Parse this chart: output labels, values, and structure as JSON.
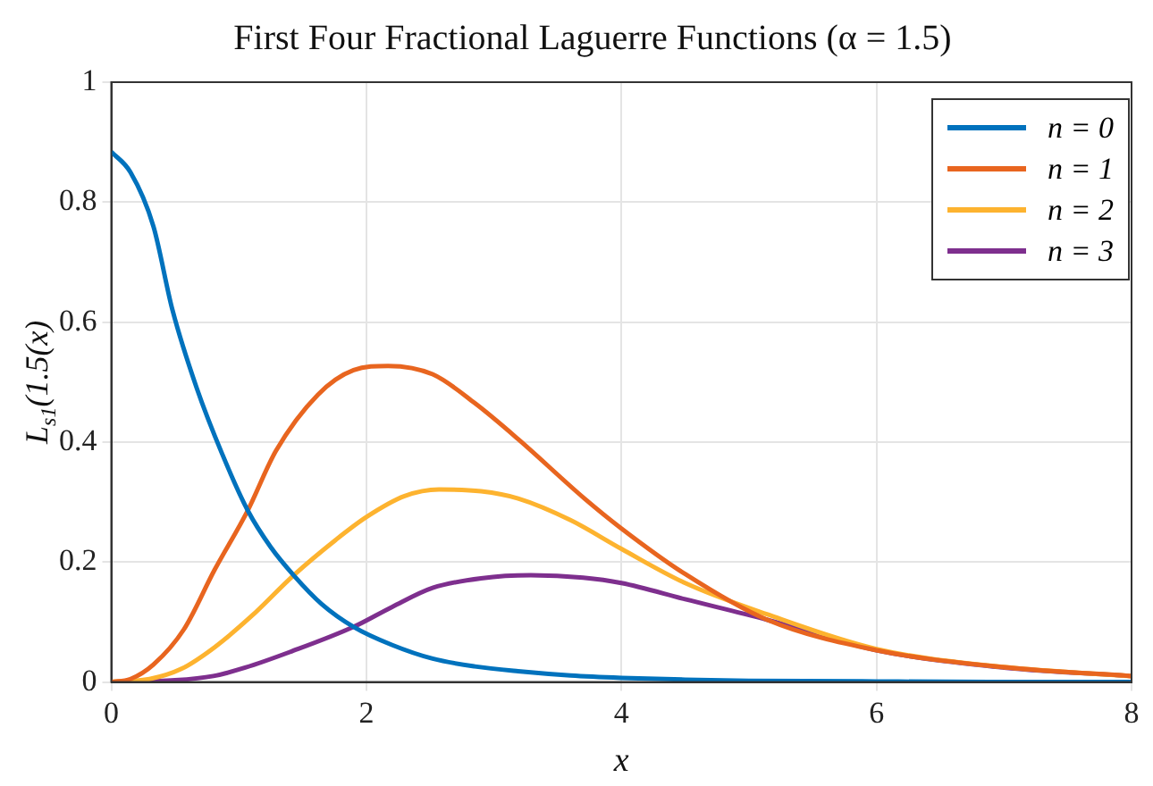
{
  "chart_data": {
    "type": "line",
    "title": "First Four Fractional Laguerre Functions (α = 1.5)",
    "xlabel": "x",
    "ylabel": "L$_{s1}$(1.5(x)",
    "xlim": [
      0,
      8
    ],
    "xticks": [
      0,
      2,
      4,
      6,
      8
    ],
    "ylim": [
      0,
      1
    ],
    "yticks": [
      0,
      0.2,
      0.4,
      0.6,
      0.8,
      1
    ],
    "grid": true,
    "legend": "top right",
    "marker": "none",
    "line_style": "solid",
    "series": [
      {
        "name": "n = 0",
        "color": "#0072bd",
        "x": [
          0,
          0.15,
          0.33,
          0.48,
          0.67,
          0.87,
          1.07,
          1.25,
          1.43,
          1.65,
          1.9,
          2.2,
          2.52,
          2.85,
          3.19,
          3.6,
          4,
          4.5,
          5,
          6,
          7,
          8
        ],
        "values": [
          0.884,
          0.85,
          0.76,
          0.62,
          0.49,
          0.38,
          0.286,
          0.225,
          0.178,
          0.13,
          0.092,
          0.062,
          0.039,
          0.026,
          0.018,
          0.011,
          0.007,
          0.004,
          0.002,
          0.001,
          0,
          0
        ]
      },
      {
        "name": "n = 1",
        "color": "#e8651f",
        "x": [
          0,
          0.15,
          0.33,
          0.57,
          0.81,
          1.07,
          1.29,
          1.62,
          1.9,
          2.17,
          2.52,
          2.85,
          3.19,
          3.71,
          4,
          4.5,
          5.14,
          6,
          7.04,
          8
        ],
        "values": [
          0,
          0.005,
          0.029,
          0.088,
          0.187,
          0.286,
          0.385,
          0.479,
          0.52,
          0.527,
          0.513,
          0.465,
          0.405,
          0.306,
          0.256,
          0.18,
          0.104,
          0.053,
          0.024,
          0.01
        ]
      },
      {
        "name": "n = 2",
        "color": "#fdb32f",
        "x": [
          0,
          0.3,
          0.55,
          0.81,
          1.1,
          1.43,
          1.76,
          2,
          2.3,
          2.57,
          2.9,
          3.19,
          3.6,
          4,
          4.5,
          5.14,
          6,
          7,
          8
        ],
        "values": [
          0,
          0.005,
          0.022,
          0.058,
          0.11,
          0.178,
          0.237,
          0.275,
          0.31,
          0.321,
          0.318,
          0.306,
          0.27,
          0.222,
          0.165,
          0.113,
          0.055,
          0.025,
          0.01
        ]
      },
      {
        "name": "n = 3",
        "color": "#7e2f8e",
        "x": [
          0,
          0.5,
          0.8,
          1.05,
          1.4,
          1.9,
          2.2,
          2.52,
          2.9,
          3.29,
          3.7,
          4,
          4.5,
          5.14,
          6,
          7,
          8
        ],
        "values": [
          0,
          0.003,
          0.01,
          0.024,
          0.05,
          0.092,
          0.125,
          0.157,
          0.173,
          0.178,
          0.174,
          0.165,
          0.138,
          0.104,
          0.053,
          0.024,
          0.01
        ]
      }
    ]
  }
}
